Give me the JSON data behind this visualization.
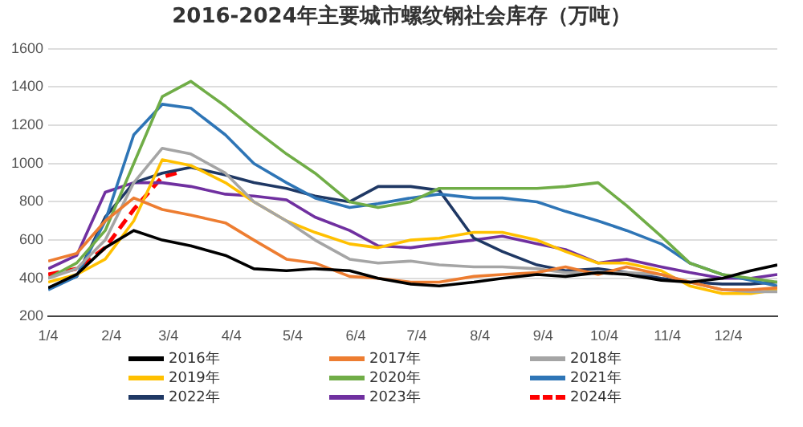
{
  "chart_data": {
    "type": "line",
    "title": "2016-2024年主要城市螺纹钢社会库存（万吨）",
    "x": [
      "--01-04",
      "--01-18",
      "--02-01",
      "--02-15",
      "--03-01",
      "--03-15",
      "--04-01",
      "--04-15",
      "--05-01",
      "--05-15",
      "--06-01",
      "--06-15",
      "--07-01",
      "--07-15",
      "--08-01",
      "--08-15",
      "--09-01",
      "--09-15",
      "--10-01",
      "--10-15",
      "--11-01",
      "--11-15",
      "--12-01",
      "--12-15",
      "--12-28"
    ],
    "series": [
      {
        "name": "2016年",
        "color": "#000000",
        "values": [
          350,
          420,
          560,
          650,
          600,
          570,
          520,
          450,
          440,
          450,
          440,
          400,
          370,
          360,
          380,
          400,
          420,
          410,
          430,
          420,
          390,
          380,
          400,
          440,
          470
        ]
      },
      {
        "name": "2017年",
        "color": "#ed7d31",
        "values": [
          490,
          530,
          700,
          820,
          760,
          730,
          690,
          600,
          500,
          480,
          410,
          400,
          380,
          380,
          410,
          420,
          430,
          460,
          420,
          460,
          420,
          380,
          340,
          340,
          350
        ]
      },
      {
        "name": "2018年",
        "color": "#a5a5a5",
        "values": [
          400,
          450,
          600,
          900,
          1080,
          1050,
          950,
          800,
          700,
          600,
          500,
          480,
          490,
          470,
          460,
          460,
          450,
          430,
          430,
          430,
          420,
          380,
          340,
          330,
          330
        ]
      },
      {
        "name": "2019年",
        "color": "#ffc000",
        "values": [
          380,
          420,
          500,
          700,
          1020,
          990,
          900,
          800,
          700,
          640,
          580,
          560,
          600,
          610,
          640,
          640,
          600,
          540,
          480,
          480,
          440,
          360,
          320,
          320,
          340
        ]
      },
      {
        "name": "2020年",
        "color": "#70ad47",
        "values": [
          400,
          480,
          650,
          1000,
          1350,
          1430,
          1300,
          1180,
          1050,
          950,
          800,
          770,
          800,
          870,
          870,
          870,
          870,
          880,
          900,
          780,
          620,
          480,
          420,
          400,
          380
        ]
      },
      {
        "name": "2021年",
        "color": "#2e75b6",
        "values": [
          340,
          410,
          700,
          1150,
          1310,
          1290,
          1150,
          1000,
          900,
          820,
          770,
          790,
          820,
          840,
          820,
          820,
          800,
          750,
          700,
          650,
          580,
          480,
          420,
          390,
          360
        ]
      },
      {
        "name": "2022年",
        "color": "#1f3864",
        "values": [
          350,
          410,
          720,
          900,
          950,
          980,
          940,
          900,
          870,
          830,
          800,
          880,
          880,
          860,
          610,
          540,
          470,
          440,
          450,
          430,
          400,
          380,
          370,
          370,
          380
        ]
      },
      {
        "name": "2023年",
        "color": "#7030a0",
        "values": [
          450,
          520,
          850,
          900,
          900,
          880,
          840,
          830,
          810,
          720,
          650,
          570,
          560,
          580,
          600,
          620,
          580,
          550,
          480,
          500,
          460,
          430,
          400,
          400,
          420
        ]
      },
      {
        "name": "2024年",
        "color": "#ff0000",
        "line_style": "dashed",
        "x": [
          "--01-04",
          "--01-18",
          "--02-01",
          "--02-15",
          "--03-01",
          "--03-08"
        ],
        "values": [
          420,
          450,
          560,
          760,
          930,
          950
        ]
      }
    ],
    "xlim": [
      "--01-04",
      "--12-28"
    ],
    "xticks": [
      {
        "value": "--01-04",
        "label": "1/4"
      },
      {
        "value": "--02-04",
        "label": "2/4"
      },
      {
        "value": "--03-04",
        "label": "3/4"
      },
      {
        "value": "--04-04",
        "label": "4/4"
      },
      {
        "value": "--05-04",
        "label": "5/4"
      },
      {
        "value": "--06-04",
        "label": "6/4"
      },
      {
        "value": "--07-04",
        "label": "7/4"
      },
      {
        "value": "--08-04",
        "label": "8/4"
      },
      {
        "value": "--09-04",
        "label": "9/4"
      },
      {
        "value": "--10-04",
        "label": "10/4"
      },
      {
        "value": "--11-04",
        "label": "11/4"
      },
      {
        "value": "--12-04",
        "label": "12/4"
      }
    ],
    "ylim": [
      200,
      1600
    ],
    "yticks": [
      200,
      400,
      600,
      800,
      1000,
      1200,
      1400,
      1600
    ],
    "grid": "y",
    "legend": "bottom",
    "marker": "none",
    "line_style": "solid"
  }
}
